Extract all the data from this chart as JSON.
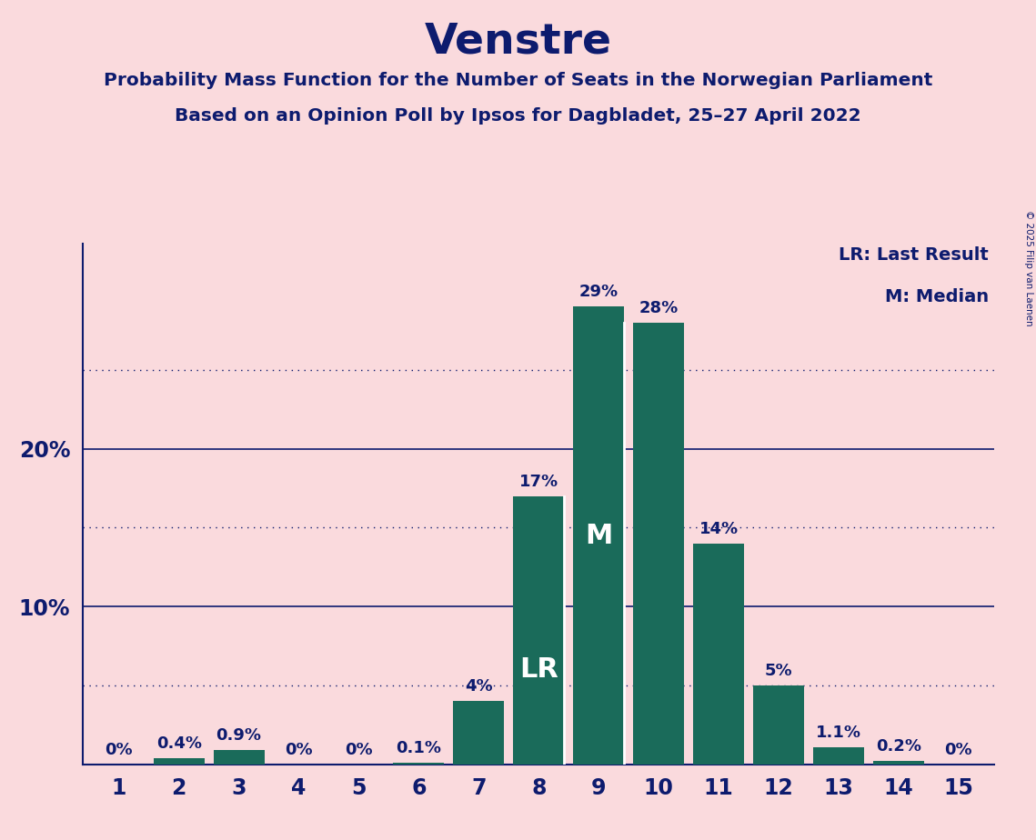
{
  "title": "Venstre",
  "subtitle1": "Probability Mass Function for the Number of Seats in the Norwegian Parliament",
  "subtitle2": "Based on an Opinion Poll by Ipsos for Dagbladet, 25–27 April 2022",
  "copyright": "© 2025 Filip van Laenen",
  "seats": [
    1,
    2,
    3,
    4,
    5,
    6,
    7,
    8,
    9,
    10,
    11,
    12,
    13,
    14,
    15
  ],
  "probabilities": [
    0.0,
    0.4,
    0.9,
    0.0,
    0.0,
    0.1,
    4.0,
    17.0,
    29.0,
    28.0,
    14.0,
    5.0,
    1.1,
    0.2,
    0.0
  ],
  "bar_color": "#1a6b5a",
  "bg_color": "#fadadd",
  "text_color": "#0d1b6e",
  "axis_color": "#0d1b6e",
  "solid_gridline_color": "#0d1b6e",
  "dotted_gridline_color": "#0d1b6e",
  "lr_seat": 8,
  "median_seat": 9,
  "lr_label": "LR",
  "median_label": "M",
  "legend_lr": "LR: Last Result",
  "legend_m": "M: Median",
  "dotted_gridlines": [
    5,
    15,
    25
  ],
  "solid_gridlines": [
    10,
    20
  ],
  "ymax": 33,
  "bar_width": 0.85
}
